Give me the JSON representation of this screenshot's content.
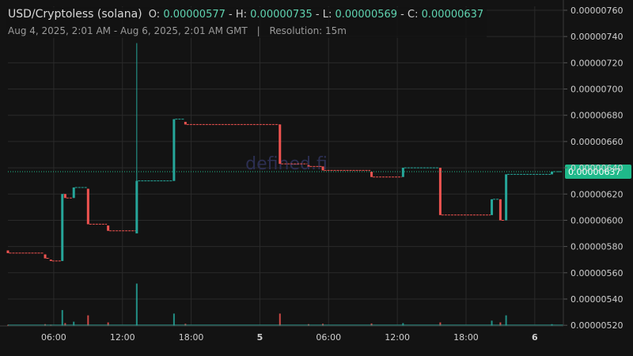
{
  "header": {
    "pair": "USD/Cryptoless (solana)",
    "open_label": "O:",
    "open": "0.00000577",
    "high_label": "H:",
    "high": "0.00000735",
    "low_label": "L:",
    "low": "0.00000569",
    "close_label": "C:",
    "close": "0.00000637",
    "range": "Aug 4, 2025, 2:01 AM - Aug 6, 2025, 2:01 AM GMT",
    "separator": "|",
    "resolution": "Resolution: 15m"
  },
  "watermark": "defined.fi",
  "colors": {
    "background": "#131313",
    "grid": "#2a2a2a",
    "up": "#26a69a",
    "down": "#ef5350",
    "price_tag": "#1fb98a",
    "text": "#cfcfcf"
  },
  "chart_data": {
    "type": "candlestick",
    "price_axis": {
      "ticks": [
        "0.00000520",
        "0.00000540",
        "0.00000560",
        "0.00000580",
        "0.00000600",
        "0.00000620",
        "0.00000640",
        "0.00000660",
        "0.00000680",
        "0.00000700",
        "0.00000720",
        "0.00000740",
        "0.00000760"
      ],
      "range": [
        5.195,
        7.63
      ],
      "unit": "1e-6",
      "last_price_label": "0.00000637"
    },
    "time_axis": {
      "ticks": [
        {
          "label": "06:00",
          "hours": 6,
          "bold": false
        },
        {
          "label": "12:00",
          "hours": 12,
          "bold": false
        },
        {
          "label": "18:00",
          "hours": 18,
          "bold": false
        },
        {
          "label": "5",
          "hours": 24,
          "bold": true
        },
        {
          "label": "06:00",
          "hours": 30,
          "bold": false
        },
        {
          "label": "12:00",
          "hours": 36,
          "bold": false
        },
        {
          "label": "18:00",
          "hours": 42,
          "bold": false
        },
        {
          "label": "6",
          "hours": 48,
          "bold": true
        }
      ],
      "range": [
        2.0,
        50.5
      ],
      "unit": "hours since Aug 4, 2025 00:00 GMT"
    },
    "candles": [
      {
        "t": 2.0,
        "o": 5.77,
        "h": 5.77,
        "l": 5.75,
        "c": 5.75,
        "v": 0.3
      },
      {
        "t": 5.25,
        "o": 5.74,
        "h": 5.74,
        "l": 5.71,
        "c": 5.71,
        "v": 0.5
      },
      {
        "t": 5.75,
        "o": 5.7,
        "h": 5.7,
        "l": 5.69,
        "c": 5.69,
        "v": 0.3
      },
      {
        "t": 6.75,
        "o": 5.69,
        "h": 6.2,
        "l": 5.69,
        "c": 6.2,
        "v": 4.5
      },
      {
        "t": 7.0,
        "o": 6.2,
        "h": 6.2,
        "l": 6.17,
        "c": 6.17,
        "v": 0.8
      },
      {
        "t": 7.75,
        "o": 6.17,
        "h": 6.25,
        "l": 6.17,
        "c": 6.25,
        "v": 1.2
      },
      {
        "t": 9.0,
        "o": 6.24,
        "h": 6.24,
        "l": 5.97,
        "c": 5.97,
        "v": 3.0
      },
      {
        "t": 10.75,
        "o": 5.96,
        "h": 5.96,
        "l": 5.92,
        "c": 5.92,
        "v": 1.0
      },
      {
        "t": 13.25,
        "o": 5.9,
        "h": 7.35,
        "l": 5.9,
        "c": 6.3,
        "v": 12.0
      },
      {
        "t": 16.5,
        "o": 6.3,
        "h": 6.77,
        "l": 6.3,
        "c": 6.77,
        "v": 3.5
      },
      {
        "t": 17.5,
        "o": 6.75,
        "h": 6.75,
        "l": 6.73,
        "c": 6.73,
        "v": 0.6
      },
      {
        "t": 25.75,
        "o": 6.73,
        "h": 6.73,
        "l": 6.43,
        "c": 6.43,
        "v": 3.5
      },
      {
        "t": 28.25,
        "o": 6.42,
        "h": 6.42,
        "l": 6.41,
        "c": 6.41,
        "v": 0.5
      },
      {
        "t": 29.5,
        "o": 6.41,
        "h": 6.41,
        "l": 6.38,
        "c": 6.38,
        "v": 0.6
      },
      {
        "t": 33.75,
        "o": 6.37,
        "h": 6.37,
        "l": 6.33,
        "c": 6.33,
        "v": 0.7
      },
      {
        "t": 36.5,
        "o": 6.33,
        "h": 6.4,
        "l": 6.33,
        "c": 6.4,
        "v": 0.8
      },
      {
        "t": 39.75,
        "o": 6.4,
        "h": 6.4,
        "l": 6.04,
        "c": 6.04,
        "v": 1.0
      },
      {
        "t": 44.25,
        "o": 6.04,
        "h": 6.16,
        "l": 6.04,
        "c": 6.16,
        "v": 1.5
      },
      {
        "t": 45.0,
        "o": 6.16,
        "h": 6.16,
        "l": 6.0,
        "c": 6.0,
        "v": 1.0
      },
      {
        "t": 45.5,
        "o": 6.0,
        "h": 6.35,
        "l": 6.0,
        "c": 6.35,
        "v": 3.0
      },
      {
        "t": 49.5,
        "o": 6.35,
        "h": 6.37,
        "l": 6.35,
        "c": 6.37,
        "v": 0.5
      }
    ],
    "volume_range": [
      0,
      13
    ]
  }
}
